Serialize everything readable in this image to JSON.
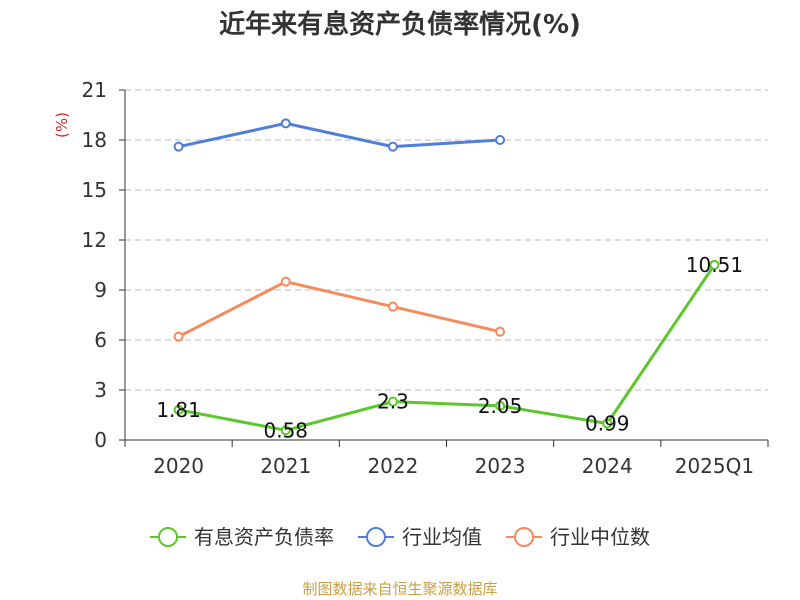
{
  "chart_data": {
    "type": "line",
    "title": "近年来有息资产负债率情况(%)",
    "unit_label": "(%)",
    "categories": [
      "2020",
      "2021",
      "2022",
      "2023",
      "2024",
      "2025Q1"
    ],
    "ylim": [
      0,
      21
    ],
    "yticks": [
      0,
      3,
      6,
      9,
      12,
      15,
      18,
      21
    ],
    "grid": true,
    "legend_position": "bottom",
    "series": [
      {
        "name": "有息资产负债率",
        "color": "#5cc72b",
        "values": [
          1.81,
          0.58,
          2.3,
          2.05,
          0.99,
          10.51
        ],
        "data_labels": [
          "1.81",
          "0.58",
          "2.3",
          "2.05",
          "0.99",
          "10.51"
        ]
      },
      {
        "name": "行业均值",
        "color": "#4f7fd9",
        "values": [
          17.6,
          19.0,
          17.6,
          18.0,
          null,
          null
        ]
      },
      {
        "name": "行业中位数",
        "color": "#f58a5b",
        "values": [
          6.2,
          9.5,
          8.0,
          6.5,
          null,
          null
        ]
      }
    ]
  },
  "source": "制图数据来自恒生聚源数据库"
}
